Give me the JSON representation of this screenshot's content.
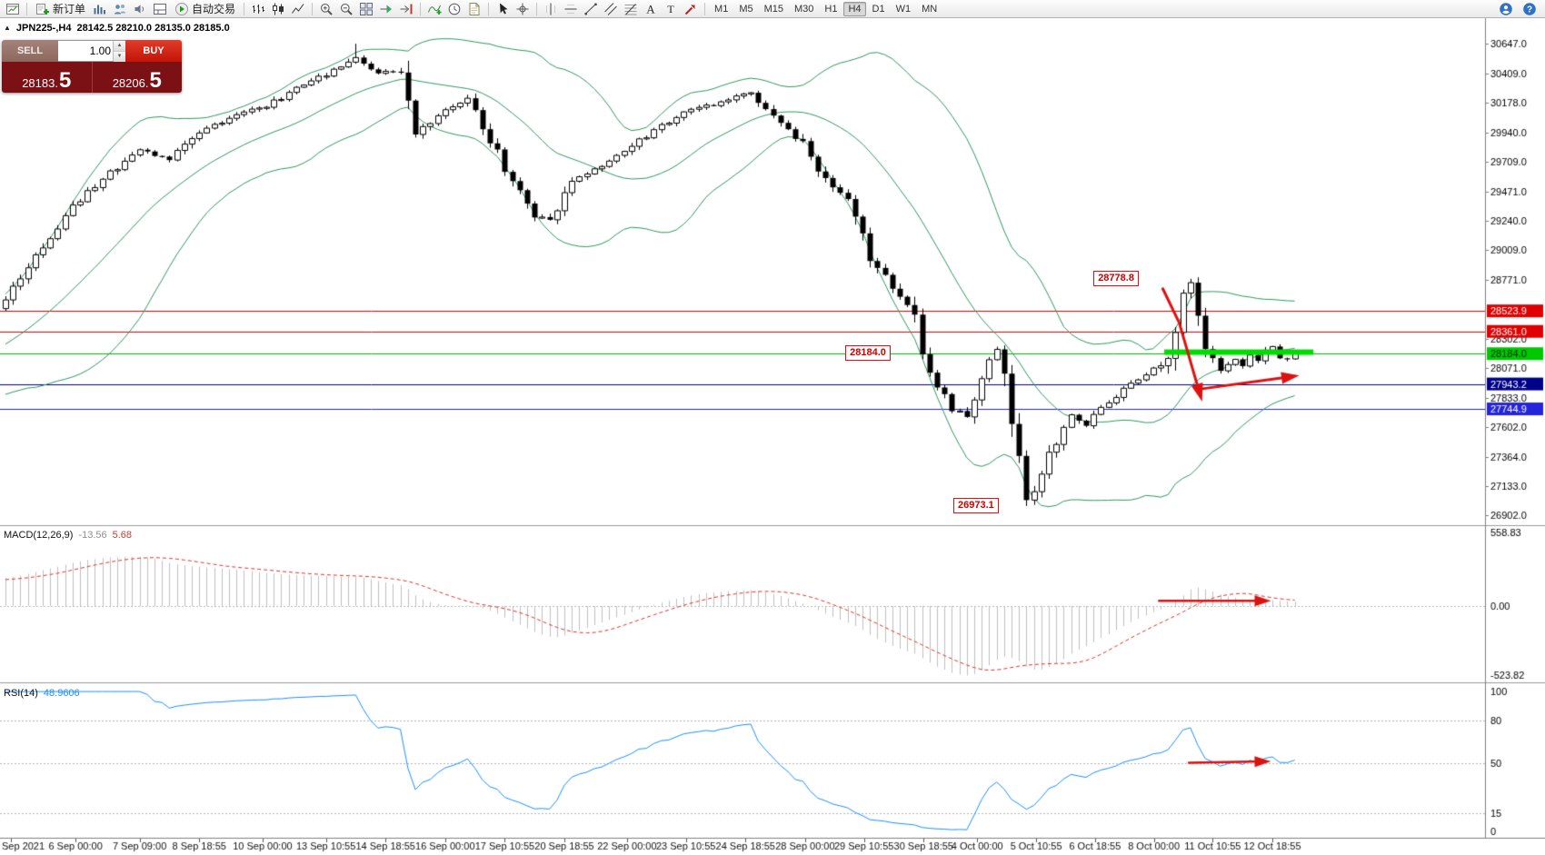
{
  "toolbar": {
    "groups": [
      {
        "items": [
          {
            "name": "chart-window-icon",
            "icon": "chartwin"
          }
        ]
      },
      {
        "items": [
          {
            "name": "new-order-button",
            "icon": "neworder",
            "label": "新订单"
          },
          {
            "name": "chart-add-icon",
            "icon": "addchart"
          },
          {
            "name": "profiles-icon",
            "icon": "profiles"
          },
          {
            "name": "alerts-icon",
            "icon": "sound"
          },
          {
            "name": "terminal-icon",
            "icon": "terminal"
          },
          {
            "name": "autotrade-button",
            "icon": "autotrade",
            "label": "自动交易"
          }
        ]
      },
      {
        "items": [
          {
            "name": "bar-chart-icon",
            "icon": "bars"
          },
          {
            "name": "candlestick-chart-icon",
            "icon": "candles"
          },
          {
            "name": "line-chart-icon",
            "icon": "linechart"
          }
        ]
      },
      {
        "items": [
          {
            "name": "zoom-in-icon",
            "icon": "zoomin"
          },
          {
            "name": "zoom-out-icon",
            "icon": "zoomout"
          },
          {
            "name": "tile-windows-icon",
            "icon": "tile"
          },
          {
            "name": "auto-scroll-icon",
            "icon": "autoscroll"
          },
          {
            "name": "chart-shift-icon",
            "icon": "shift"
          }
        ]
      },
      {
        "items": [
          {
            "name": "indicators-icon",
            "icon": "indicators"
          },
          {
            "name": "periods-icon",
            "icon": "periods"
          },
          {
            "name": "templates-icon",
            "icon": "templates"
          }
        ]
      },
      {
        "items": [
          {
            "name": "cursor-icon",
            "icon": "cursor"
          },
          {
            "name": "crosshair-icon",
            "icon": "crosshair"
          }
        ]
      },
      {
        "items": [
          {
            "name": "vertical-line-icon",
            "icon": "vline"
          },
          {
            "name": "horizontal-line-icon",
            "icon": "hline"
          },
          {
            "name": "trendline-icon",
            "icon": "trend"
          },
          {
            "name": "channel-icon",
            "icon": "channel"
          },
          {
            "name": "fibonacci-icon",
            "icon": "fibo"
          },
          {
            "name": "text-tool-icon",
            "icon": "text"
          },
          {
            "name": "label-tool-icon",
            "icon": "label"
          },
          {
            "name": "arrows-tool-icon",
            "icon": "arrowtool"
          }
        ]
      }
    ],
    "timeframes": [
      {
        "label": "M1"
      },
      {
        "label": "M5"
      },
      {
        "label": "M15"
      },
      {
        "label": "M30"
      },
      {
        "label": "H1"
      },
      {
        "label": "H4",
        "active": true
      },
      {
        "label": "D1"
      },
      {
        "label": "W1"
      },
      {
        "label": "MN"
      }
    ],
    "right_items": [
      {
        "name": "community-icon",
        "icon": "user"
      },
      {
        "name": "help-icon",
        "icon": "help"
      }
    ]
  },
  "symbol_info": {
    "title": "JPN225-,H4",
    "ohlc": "28142.5 28210.0 28135.0 28185.0",
    "collapse_glyph": "▲"
  },
  "trade_panel": {
    "sell_label": "SELL",
    "buy_label": "BUY",
    "volume": "1.00",
    "sell_price_main": "28183.",
    "sell_price_big": "5",
    "buy_price_main": "28206.",
    "buy_price_big": "5"
  },
  "macd_panel": {
    "label": "MACD(12,26,9)",
    "main_value": "-13.56",
    "signal_value": "5.68"
  },
  "rsi_panel": {
    "label": "RSI(14)",
    "value": "48.9606"
  },
  "annotations": {
    "high_label": "28778.8",
    "support_label": "28184.0",
    "low_label": "26973.1"
  },
  "chart_data": {
    "type": "candlestick",
    "symbol": "JPN225-",
    "timeframe": "H4",
    "candles_total": 174,
    "ylim": [
      26850,
      30850
    ],
    "close_anchors": [
      [
        0,
        28620
      ],
      [
        4,
        28950
      ],
      [
        9,
        29350
      ],
      [
        14,
        29620
      ],
      [
        18,
        29800
      ],
      [
        22,
        29720
      ],
      [
        26,
        29950
      ],
      [
        31,
        30080
      ],
      [
        35,
        30150
      ],
      [
        40,
        30320
      ],
      [
        44,
        30430
      ],
      [
        47,
        30540
      ],
      [
        50,
        30400
      ],
      [
        53,
        30450
      ],
      [
        55,
        29920
      ],
      [
        58,
        30080
      ],
      [
        62,
        30200
      ],
      [
        65,
        29880
      ],
      [
        68,
        29550
      ],
      [
        71,
        29280
      ],
      [
        73,
        29230
      ],
      [
        76,
        29560
      ],
      [
        80,
        29680
      ],
      [
        84,
        29830
      ],
      [
        88,
        30000
      ],
      [
        92,
        30120
      ],
      [
        96,
        30180
      ],
      [
        100,
        30260
      ],
      [
        103,
        30080
      ],
      [
        107,
        29850
      ],
      [
        110,
        29560
      ],
      [
        113,
        29380
      ],
      [
        116,
        28950
      ],
      [
        119,
        28700
      ],
      [
        122,
        28480
      ],
      [
        124,
        28000
      ],
      [
        127,
        27750
      ],
      [
        129,
        27680
      ],
      [
        131,
        27950
      ],
      [
        133,
        28230
      ],
      [
        135,
        27700
      ],
      [
        137,
        26995
      ],
      [
        139,
        27250
      ],
      [
        141,
        27500
      ],
      [
        143,
        27700
      ],
      [
        145,
        27620
      ],
      [
        147,
        27760
      ],
      [
        150,
        27900
      ],
      [
        153,
        28010
      ],
      [
        156,
        28150
      ],
      [
        157,
        28420
      ],
      [
        158,
        28650
      ],
      [
        159,
        28720
      ],
      [
        160,
        28500
      ],
      [
        161,
        28250
      ],
      [
        162,
        28120
      ],
      [
        163,
        28040
      ],
      [
        164,
        28090
      ],
      [
        165,
        28140
      ],
      [
        166,
        28080
      ],
      [
        167,
        28170
      ],
      [
        168,
        28130
      ],
      [
        169,
        28200
      ],
      [
        170,
        28230
      ],
      [
        171,
        28150
      ],
      [
        172,
        28210
      ],
      [
        173,
        28185
      ]
    ],
    "key_points": {
      "period_high": {
        "index": 47,
        "price": 30647.0
      },
      "spike_high": {
        "index": 159,
        "price": 28778.8
      },
      "period_low": {
        "index": 137,
        "price": 26973.1
      }
    },
    "last_candle": {
      "open": 28142.5,
      "high": 28210.0,
      "low": 28135.0,
      "close": 28185.0
    },
    "y_ticks": [
      30647.0,
      30409.0,
      30178.0,
      29940.0,
      29709.0,
      29471.0,
      29240.0,
      29009.0,
      28771.0,
      28302.0,
      28071.0,
      27833.0,
      27602.0,
      27364.0,
      27133.0,
      26902.0
    ],
    "price_badges": [
      {
        "price": 28523.9,
        "label": "28523.9",
        "bg": "#e00000",
        "fg": "#ffffff"
      },
      {
        "price": 28361.0,
        "label": "28361.0",
        "bg": "#e00000",
        "fg": "#ffffff"
      },
      {
        "price": 28184.0,
        "label": "28184.0",
        "bg": "#00c800",
        "fg": "#002b00"
      },
      {
        "price": 27943.2,
        "label": "27943.2",
        "bg": "#00008b",
        "fg": "#ffffff"
      },
      {
        "price": 27744.9,
        "label": "27744.9",
        "bg": "#2424dc",
        "fg": "#ffffff"
      }
    ],
    "h_lines": [
      {
        "price": 28523.9,
        "color": "#e00000"
      },
      {
        "price": 28361.0,
        "color": "#e00000"
      },
      {
        "price": 28184.0,
        "color": "#00b400"
      },
      {
        "price": 27943.2,
        "color": "#00008b"
      },
      {
        "price": 27744.9,
        "color": "#2424dc"
      }
    ],
    "support_bar": {
      "price": 28196,
      "from_index": 155.5,
      "to_index": 175.5,
      "color": "#00dc00",
      "thickness": 6
    },
    "bollinger": {
      "period": 20,
      "deviation": 2,
      "color": "#2e9960"
    },
    "x_labels": [
      [
        0.7,
        "Sep 2021"
      ],
      [
        9.4,
        "6 Sep 00:00"
      ],
      [
        18,
        "7 Sep 09:00"
      ],
      [
        26,
        "8 Sep 18:55"
      ],
      [
        34.5,
        "10 Sep 00:00"
      ],
      [
        43,
        "13 Sep 10:55"
      ],
      [
        51,
        "14 Sep 18:55"
      ],
      [
        59,
        "16 Sep 00:00"
      ],
      [
        67,
        "17 Sep 10:55"
      ],
      [
        75,
        "20 Sep 18:55"
      ],
      [
        83.4,
        "22 Sep 00:00"
      ],
      [
        91.3,
        "23 Sep 10:55"
      ],
      [
        99.3,
        "24 Sep 18:55"
      ],
      [
        107.3,
        "28 Sep 00:00"
      ],
      [
        115.2,
        "29 Sep 10:55"
      ],
      [
        123.2,
        "30 Sep 18:55"
      ],
      [
        130.4,
        "4 Oct 00:00"
      ],
      [
        138.3,
        "5 Oct 10:55"
      ],
      [
        146.2,
        "6 Oct 18:55"
      ],
      [
        154.1,
        "8 Oct 00:00"
      ],
      [
        162,
        "11 Oct 10:55"
      ],
      [
        170,
        "12 Oct 18:55"
      ]
    ],
    "macd": {
      "fast": 12,
      "slow": 26,
      "signal": 9,
      "ylim": [
        -560,
        595
      ],
      "ticks": [
        {
          "v": 558.83,
          "t": "558.83"
        },
        {
          "v": 0,
          "t": "0.00"
        },
        {
          "v": -523.82,
          "t": "-523.82"
        }
      ],
      "histogram_color": "#c0c0c0",
      "signal_color": "#e03030"
    },
    "rsi": {
      "period": 14,
      "color": "#1e90ff",
      "levels": [
        {
          "v": 80,
          "t": "80"
        },
        {
          "v": 50,
          "t": "50"
        },
        {
          "v": 15,
          "t": "15"
        }
      ],
      "bounds": [
        {
          "v": 100,
          "t": "100"
        },
        {
          "v": 0,
          "t": "0"
        }
      ]
    },
    "arrows": [
      {
        "panel": "main",
        "points": [
          [
            155.3,
            28700
          ],
          [
            157.5,
            28430
          ],
          [
            160.2,
            27880
          ]
        ],
        "width": 3,
        "color": "#dd1111"
      },
      {
        "panel": "main",
        "points": [
          [
            160.6,
            27905
          ],
          [
            172.3,
            28000
          ]
        ],
        "width": 3,
        "color": "#dd1111"
      },
      {
        "panel": "macd",
        "points": [
          [
            154.8,
            40
          ],
          [
            168.6,
            40
          ]
        ],
        "width": 2.5,
        "color": "#dd1111"
      },
      {
        "panel": "rsi",
        "points": [
          [
            158.8,
            50.3
          ],
          [
            168.6,
            51.2
          ]
        ],
        "width": 2.5,
        "color": "#dd1111"
      }
    ],
    "annotation_boxes": [
      {
        "el": "anno-high",
        "left_index": 146,
        "price": 28778.8
      },
      {
        "el": "anno-support",
        "left_index": 112.7,
        "price": 28184.0
      },
      {
        "el": "anno-low",
        "left_index": 127.2,
        "price": 26973.1
      }
    ]
  }
}
